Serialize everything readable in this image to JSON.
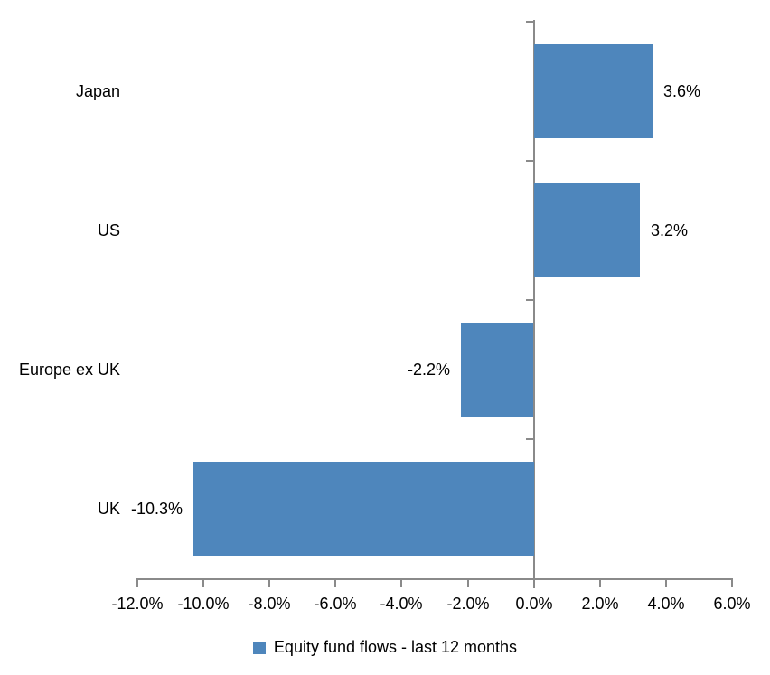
{
  "chart_data": {
    "type": "bar",
    "orientation": "horizontal",
    "title": "",
    "categories": [
      "Japan",
      "US",
      "Europe ex UK",
      "UK"
    ],
    "series": [
      {
        "name": "Equity fund flows - last 12 months",
        "values": [
          3.6,
          3.2,
          -2.2,
          -10.3
        ],
        "data_labels": [
          "3.6%",
          "3.2%",
          "-2.2%",
          "-10.3%"
        ]
      }
    ],
    "xlabel": "",
    "ylabel": "",
    "xlim": [
      -12,
      6
    ],
    "x_ticks": [
      -12,
      -10,
      -8,
      -6,
      -4,
      -2,
      0,
      2,
      4,
      6
    ],
    "x_tick_labels": [
      "-12.0%",
      "-10.0%",
      "-8.0%",
      "-6.0%",
      "-4.0%",
      "-2.0%",
      "0.0%",
      "2.0%",
      "4.0%",
      "6.0%"
    ],
    "gridlines": false,
    "legend_position": "bottom",
    "legend": {
      "label": "Equity fund flows - last 12 months",
      "swatch_color": "#4e86bc"
    },
    "colors": {
      "bar": "#4e86bc",
      "axis": "#8a8a8a",
      "text": "#000000",
      "background": "#ffffff"
    }
  }
}
